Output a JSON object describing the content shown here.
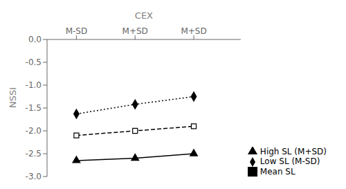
{
  "chart_data": {
    "type": "line",
    "x": [
      1,
      2,
      3
    ],
    "xlabel": "CEX",
    "ylabel": "NSSI",
    "xlim": [
      0.5,
      3.8
    ],
    "xticks": [
      {
        "value": 1,
        "label": "M-SD"
      },
      {
        "value": 2,
        "label": "M+SD"
      },
      {
        "value": 3,
        "label": "M+SD"
      }
    ],
    "ylim": [
      -3.0,
      0.0
    ],
    "yticks": [
      {
        "value": 0,
        "label": "0.0"
      },
      -0.5,
      {
        "value": -1,
        "label": "-1.0"
      },
      -1.5,
      {
        "value": -2,
        "label": "-2.0"
      },
      -2.5,
      {
        "value": -3,
        "label": "-3.0"
      }
    ],
    "legend": "lower right",
    "series": [
      {
        "name": "High SL (M+SD)",
        "color": "#000000",
        "marker": "triangle",
        "line_style": "solid",
        "values": [
          -2.65,
          -2.6,
          -2.5
        ]
      },
      {
        "name": "Mean SL",
        "color": "#000000",
        "marker": "open_square",
        "line_style": "dashed",
        "values": [
          -2.1,
          -2.0,
          -1.9
        ]
      },
      {
        "name": "Low SL (M-SD)",
        "color": "#000000",
        "marker": "diamond",
        "line_style": "dotted",
        "values": [
          -1.63,
          -1.42,
          -1.25
        ]
      }
    ]
  }
}
